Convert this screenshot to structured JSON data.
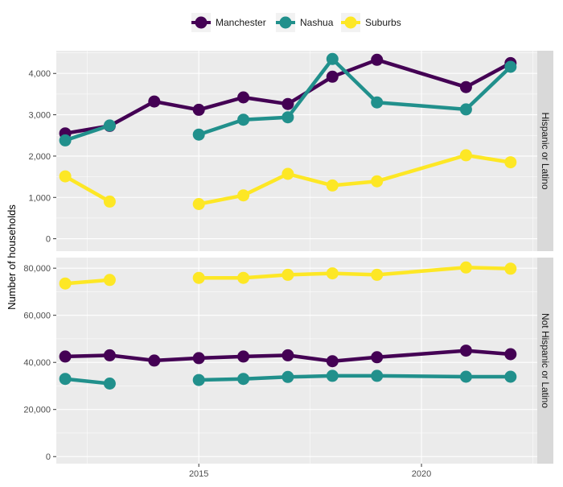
{
  "chart_data": {
    "type": "line",
    "ylabel": "Number of households",
    "xlabel": "",
    "colors": {
      "Manchester": "#440154",
      "Nashua": "#21908C",
      "Suburbs": "#FDE725"
    },
    "legend": {
      "placement": "top",
      "entries": [
        "Manchester",
        "Nashua",
        "Suburbs"
      ]
    },
    "x_axis": {
      "range": [
        2011.8,
        2022.6
      ],
      "ticks": [
        2015,
        2020
      ],
      "tick_labels": [
        "2015",
        "2020"
      ]
    },
    "grid": true,
    "panels": [
      {
        "strip": "Hispanic or Latino",
        "ylim": [
          -300,
          4550
        ],
        "y_ticks": [
          0,
          1000,
          2000,
          3000,
          4000
        ],
        "y_tick_labels": [
          "0",
          "1,000",
          "2,000",
          "3,000",
          "4,000"
        ],
        "series": [
          {
            "name": "Manchester",
            "points": [
              [
                2012,
                2550
              ],
              [
                2013,
                2730
              ],
              [
                2014,
                3320
              ],
              [
                2015,
                3120
              ],
              [
                2016,
                3420
              ],
              [
                2017,
                3260
              ],
              [
                2018,
                3920
              ],
              [
                2019,
                4330
              ],
              [
                2021,
                3670
              ],
              [
                2022,
                4250
              ]
            ]
          },
          {
            "name": "Nashua",
            "points": [
              [
                2012,
                2380
              ],
              [
                2013,
                2740
              ],
              [
                null,
                null
              ],
              [
                2015,
                2520
              ],
              [
                2016,
                2880
              ],
              [
                2017,
                2940
              ],
              [
                2018,
                4350
              ],
              [
                2019,
                3300
              ],
              [
                2021,
                3130
              ],
              [
                2022,
                4160
              ]
            ]
          },
          {
            "name": "Suburbs",
            "points": [
              [
                2012,
                1510
              ],
              [
                2013,
                900
              ],
              [
                null,
                null
              ],
              [
                2015,
                840
              ],
              [
                2016,
                1050
              ],
              [
                2017,
                1570
              ],
              [
                2018,
                1290
              ],
              [
                2019,
                1390
              ],
              [
                2021,
                2020
              ],
              [
                2022,
                1850
              ]
            ]
          }
        ]
      },
      {
        "strip": "Not Hispanic or Latino",
        "ylim": [
          -3000,
          84500
        ],
        "y_ticks": [
          0,
          20000,
          40000,
          60000,
          80000
        ],
        "y_tick_labels": [
          "0",
          "20,000",
          "40,000",
          "60,000",
          "80,000"
        ],
        "series": [
          {
            "name": "Manchester",
            "points": [
              [
                2012,
                42500
              ],
              [
                2013,
                43000
              ],
              [
                2014,
                40800
              ],
              [
                2015,
                41800
              ],
              [
                2016,
                42500
              ],
              [
                2017,
                43000
              ],
              [
                2018,
                40500
              ],
              [
                2019,
                42200
              ],
              [
                2021,
                45000
              ],
              [
                2022,
                43500
              ]
            ]
          },
          {
            "name": "Nashua",
            "points": [
              [
                2012,
                33000
              ],
              [
                2013,
                31000
              ],
              [
                null,
                null
              ],
              [
                2015,
                32500
              ],
              [
                2016,
                33000
              ],
              [
                2017,
                33800
              ],
              [
                2018,
                34300
              ],
              [
                2019,
                34300
              ],
              [
                2021,
                33900
              ],
              [
                2022,
                33900
              ]
            ]
          },
          {
            "name": "Suburbs",
            "points": [
              [
                2012,
                73500
              ],
              [
                2013,
                75000
              ],
              [
                null,
                null
              ],
              [
                2015,
                75900
              ],
              [
                2016,
                75900
              ],
              [
                2017,
                77200
              ],
              [
                2018,
                77800
              ],
              [
                2019,
                77200
              ],
              [
                2021,
                80300
              ],
              [
                2022,
                79800
              ]
            ]
          }
        ]
      }
    ]
  }
}
